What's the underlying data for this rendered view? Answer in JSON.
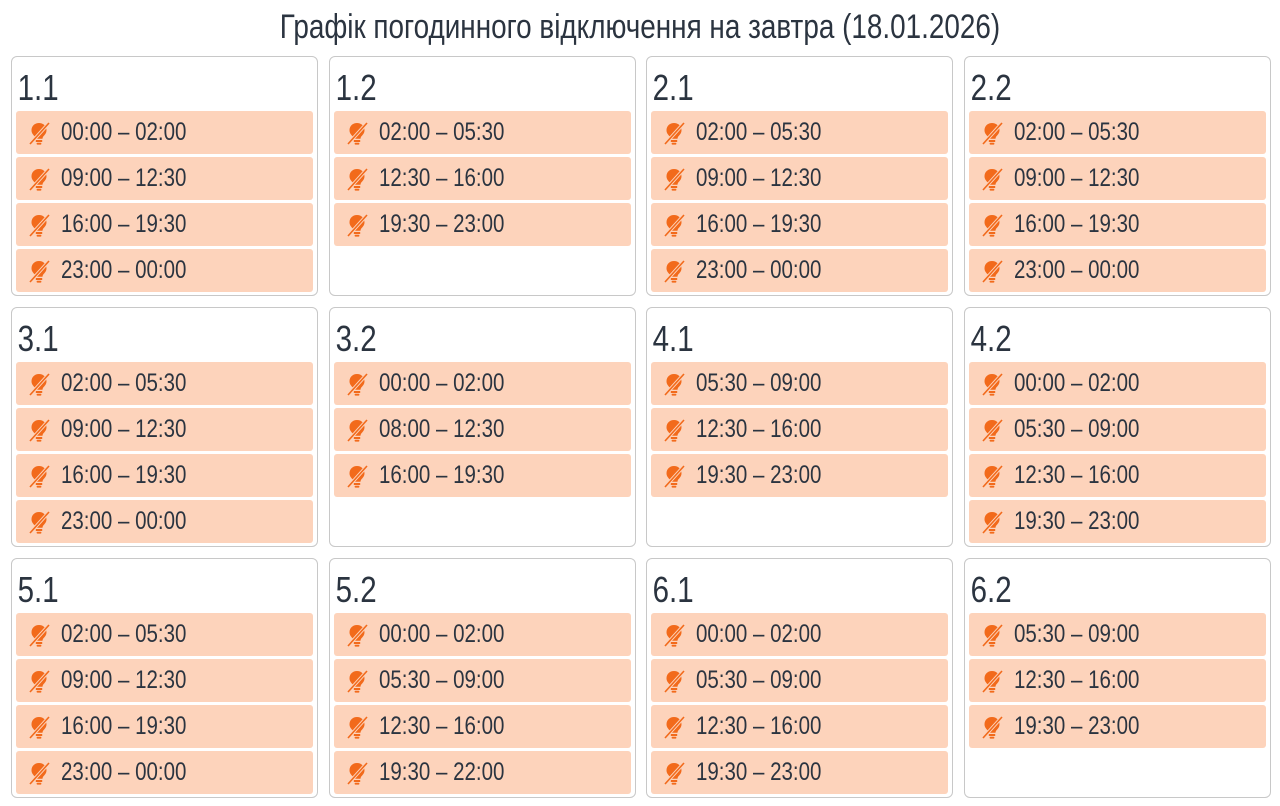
{
  "title": "Графік погодинного відключення на завтра (18.01.2026)",
  "colors": {
    "item_bg": "#fdd3bb",
    "icon": "#f26a1b",
    "text": "#2b3440"
  },
  "item_icon": "lightbulb-off-icon",
  "groups": [
    {
      "name": "1.1",
      "periods": [
        "00:00 – 02:00",
        "09:00 – 12:30",
        "16:00 – 19:30",
        "23:00 – 00:00"
      ]
    },
    {
      "name": "1.2",
      "periods": [
        "02:00 – 05:30",
        "12:30 – 16:00",
        "19:30 – 23:00"
      ]
    },
    {
      "name": "2.1",
      "periods": [
        "02:00 – 05:30",
        "09:00 – 12:30",
        "16:00 – 19:30",
        "23:00 – 00:00"
      ]
    },
    {
      "name": "2.2",
      "periods": [
        "02:00 – 05:30",
        "09:00 – 12:30",
        "16:00 – 19:30",
        "23:00 – 00:00"
      ]
    },
    {
      "name": "3.1",
      "periods": [
        "02:00 – 05:30",
        "09:00 – 12:30",
        "16:00 – 19:30",
        "23:00 – 00:00"
      ]
    },
    {
      "name": "3.2",
      "periods": [
        "00:00 – 02:00",
        "08:00 – 12:30",
        "16:00 – 19:30"
      ]
    },
    {
      "name": "4.1",
      "periods": [
        "05:30 – 09:00",
        "12:30 – 16:00",
        "19:30 – 23:00"
      ]
    },
    {
      "name": "4.2",
      "periods": [
        "00:00 – 02:00",
        "05:30 – 09:00",
        "12:30 – 16:00",
        "19:30 – 23:00"
      ]
    },
    {
      "name": "5.1",
      "periods": [
        "02:00 – 05:30",
        "09:00 – 12:30",
        "16:00 – 19:30",
        "23:00 – 00:00"
      ]
    },
    {
      "name": "5.2",
      "periods": [
        "00:00 – 02:00",
        "05:30 – 09:00",
        "12:30 – 16:00",
        "19:30 – 22:00"
      ]
    },
    {
      "name": "6.1",
      "periods": [
        "00:00 – 02:00",
        "05:30 – 09:00",
        "12:30 – 16:00",
        "19:30 – 23:00"
      ]
    },
    {
      "name": "6.2",
      "periods": [
        "05:30 – 09:00",
        "12:30 – 16:00",
        "19:30 – 23:00"
      ]
    }
  ]
}
